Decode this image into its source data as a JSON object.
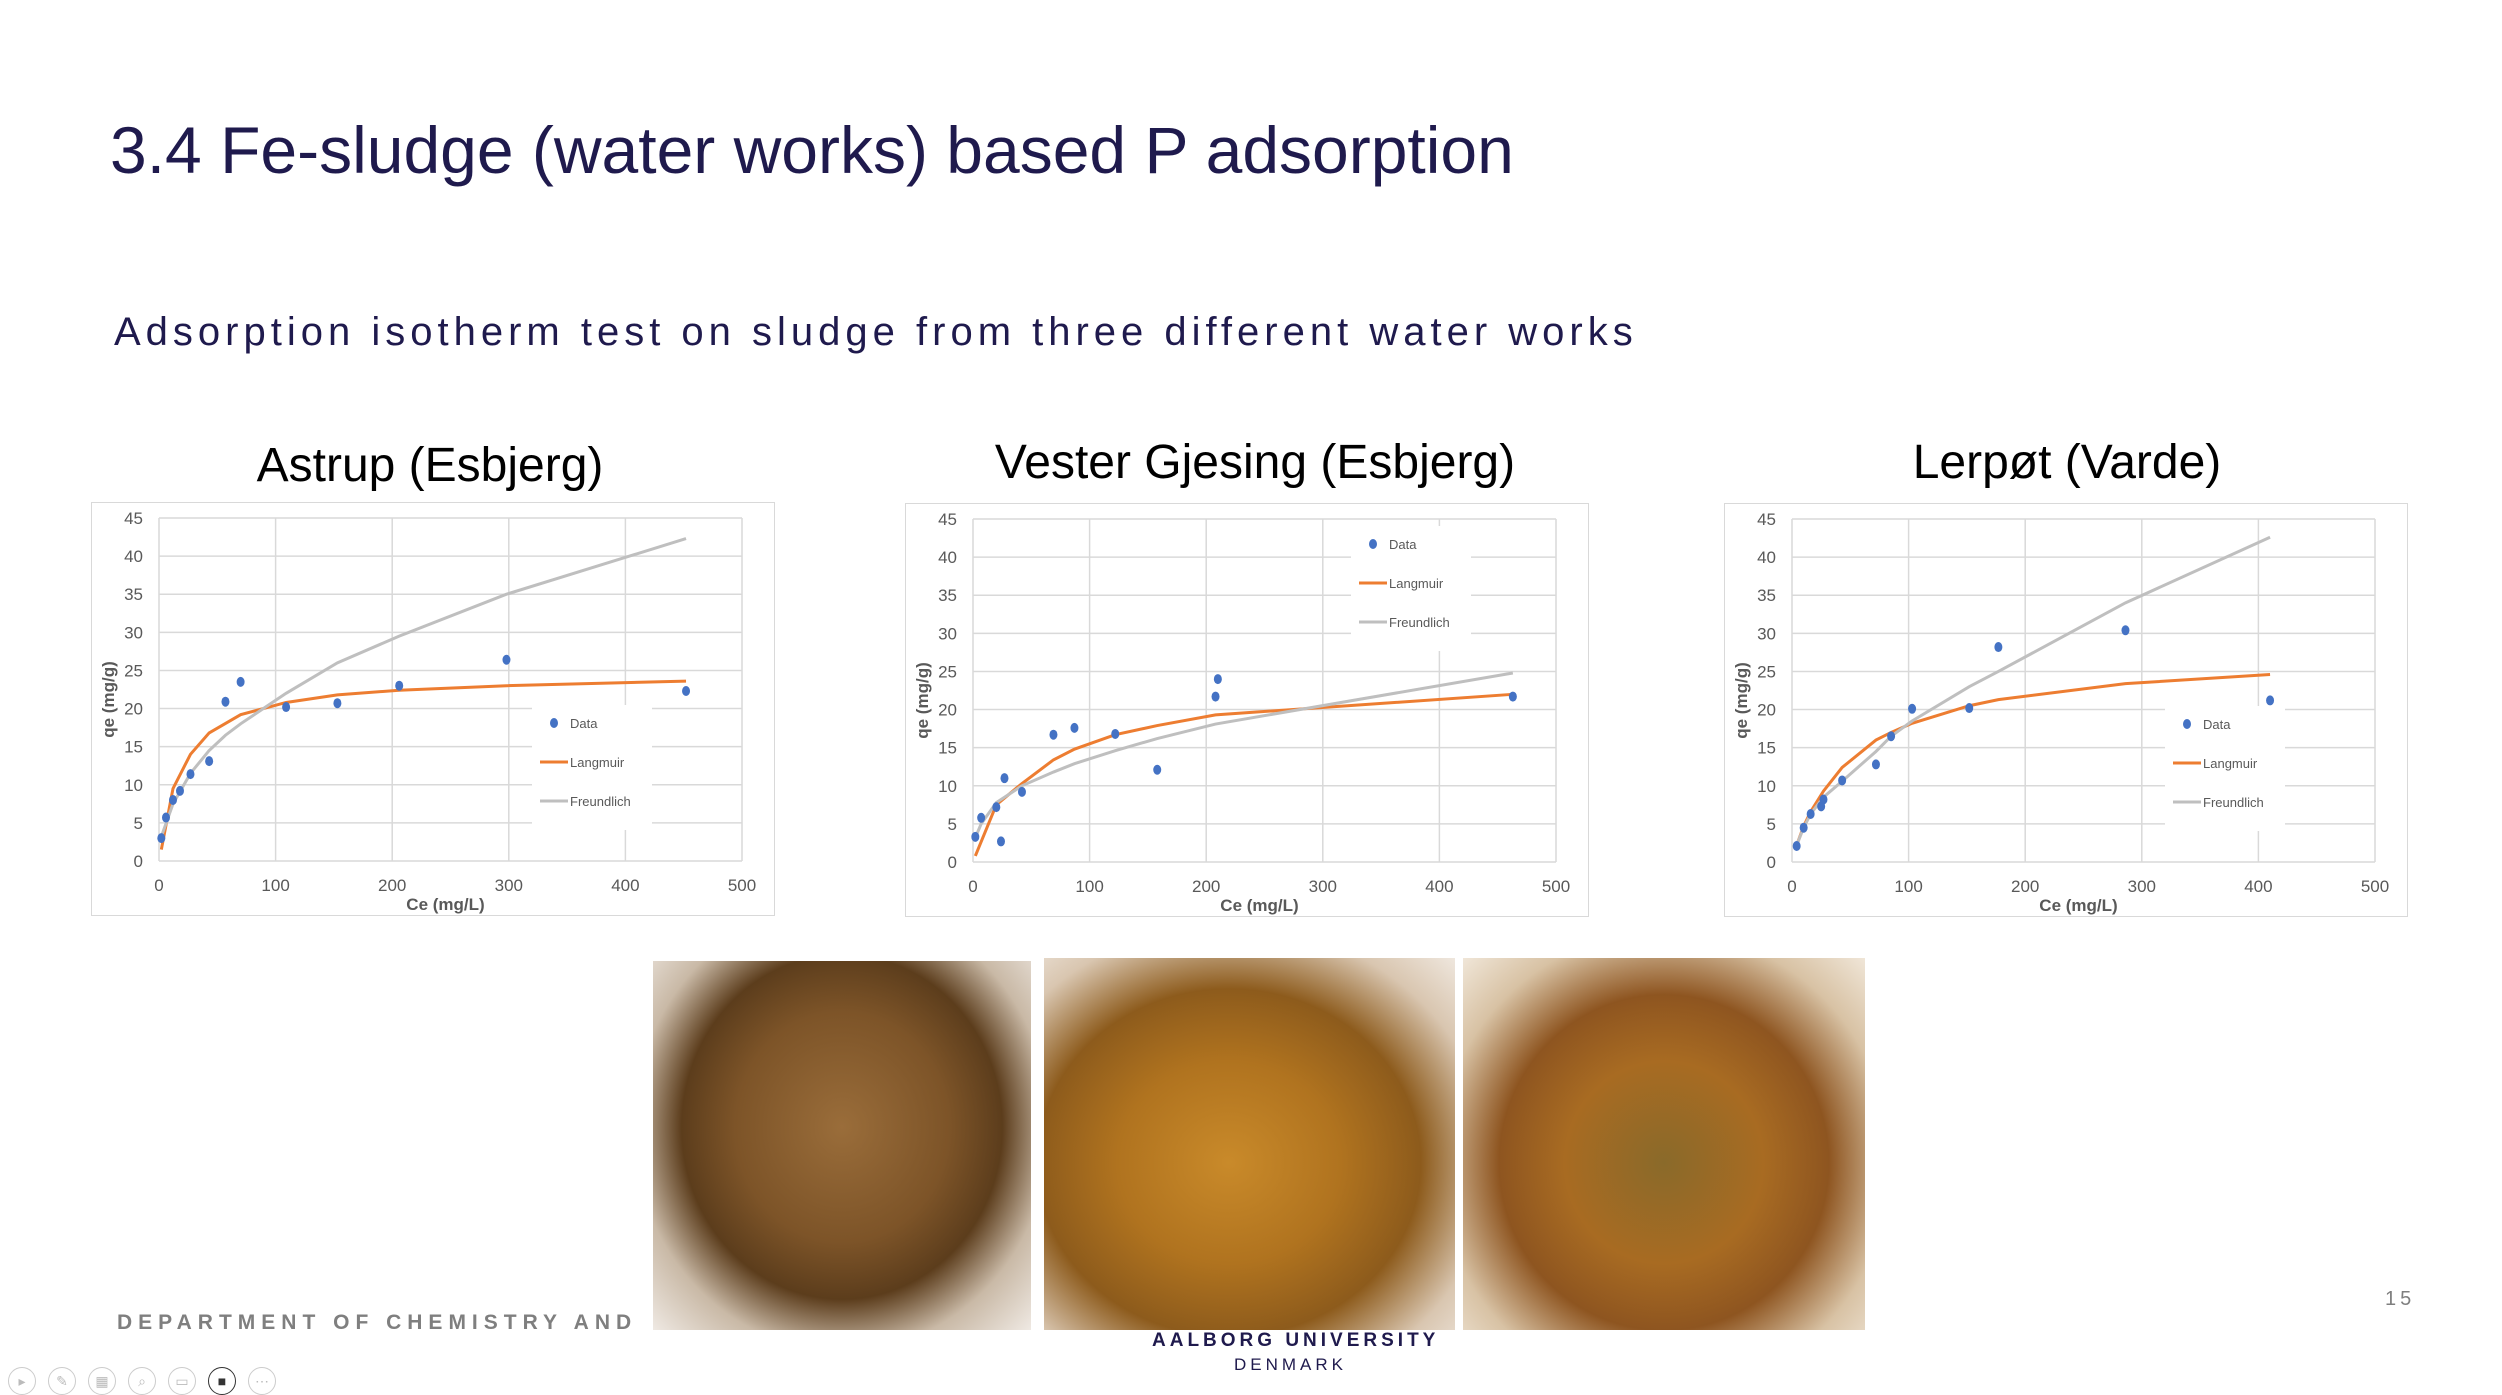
{
  "slide": {
    "title": "3.4 Fe-sludge (water works) based P adsorption",
    "subtitle": "Adsorption isotherm test on sludge from three different water works",
    "footer_department": "DEPARTMENT OF CHEMISTRY AND",
    "footer_university": "AALBORG UNIVERSITY",
    "footer_country": "DENMARK",
    "page_number": "15",
    "toolbar_icons": [
      "play-icon",
      "pen-icon",
      "grid-icon",
      "zoom-icon",
      "subtitles-icon",
      "camera-icon",
      "more-icon"
    ]
  },
  "colors": {
    "title": "#1f1a4d",
    "data": "#4472c4",
    "langmuir": "#ed7d31",
    "freundlich": "#bfbfbf",
    "grid": "#d9d9d9"
  },
  "chart_data": [
    {
      "type": "scatter",
      "title": "Astrup (Esbjerg)",
      "xlabel": "Ce (mg/L)",
      "ylabel": "qe (mg/g)",
      "xlim": [
        0,
        500
      ],
      "ylim": [
        0,
        45
      ],
      "xticks": [
        "0",
        "100",
        "200",
        "300",
        "400",
        "500"
      ],
      "yticks": [
        "0",
        "5",
        "10",
        "15",
        "20",
        "25",
        "30",
        "35",
        "40",
        "45"
      ],
      "grid": true,
      "legend_position": "bottom-right",
      "legend": [
        "Data",
        "Langmuir",
        "Freundlich"
      ],
      "series": [
        {
          "name": "Data",
          "kind": "points",
          "x": [
            2,
            6,
            12,
            18,
            27,
            43,
            57,
            70,
            109,
            153,
            206,
            298,
            452
          ],
          "y": [
            3,
            5.7,
            8,
            9.2,
            11.4,
            13.1,
            20.9,
            23.5,
            20.2,
            20.7,
            23,
            26.4,
            22.3
          ]
        },
        {
          "name": "Langmuir",
          "kind": "line",
          "x": [
            2,
            12,
            27,
            43,
            70,
            109,
            153,
            206,
            298,
            452
          ],
          "y": [
            1.5,
            9.5,
            14,
            16.8,
            19.2,
            20.8,
            21.8,
            22.4,
            23,
            23.6
          ]
        },
        {
          "name": "Freundlich",
          "kind": "line",
          "x": [
            2,
            12,
            27,
            43,
            57,
            70,
            109,
            153,
            206,
            298,
            452
          ],
          "y": [
            3.2,
            7.5,
            11.5,
            14.5,
            16.5,
            18,
            22,
            26,
            29.5,
            35,
            42.3
          ]
        }
      ]
    },
    {
      "type": "scatter",
      "title": "Vester Gjesing (Esbjerg)",
      "xlabel": "Ce (mg/L)",
      "ylabel": "qe (mg/g)",
      "xlim": [
        0,
        500
      ],
      "ylim": [
        0,
        45
      ],
      "xticks": [
        "0",
        "100",
        "200",
        "300",
        "400",
        "500"
      ],
      "yticks": [
        "0",
        "5",
        "10",
        "15",
        "20",
        "25",
        "30",
        "35",
        "40",
        "45"
      ],
      "grid": true,
      "legend_position": "top-right",
      "legend": [
        "Data",
        "Langmuir",
        "Freundlich"
      ],
      "series": [
        {
          "name": "Data",
          "kind": "points",
          "x": [
            2,
            7,
            20,
            24,
            27,
            42,
            69,
            87,
            122,
            158,
            208,
            210,
            463
          ],
          "y": [
            3.3,
            5.8,
            7.2,
            2.7,
            11,
            9.2,
            16.7,
            17.6,
            16.8,
            12.1,
            21.7,
            24,
            21.7
          ]
        },
        {
          "name": "Langmuir",
          "kind": "line",
          "x": [
            2,
            20,
            42,
            69,
            87,
            122,
            158,
            208,
            463
          ],
          "y": [
            0.8,
            7.5,
            10.3,
            13.4,
            14.8,
            16.7,
            17.9,
            19.3,
            22
          ]
        },
        {
          "name": "Freundlich",
          "kind": "line",
          "x": [
            2,
            7,
            20,
            42,
            69,
            87,
            122,
            158,
            208,
            463
          ],
          "y": [
            3.2,
            5,
            7.8,
            10,
            11.8,
            12.9,
            14.6,
            16.2,
            18.1,
            24.8
          ]
        }
      ]
    },
    {
      "type": "scatter",
      "title": "Lerpøt (Varde)",
      "xlabel": "Ce (mg/L)",
      "ylabel": "qe (mg/g)",
      "xlim": [
        0,
        500
      ],
      "ylim": [
        0,
        45
      ],
      "xticks": [
        "0",
        "100",
        "200",
        "300",
        "400",
        "500"
      ],
      "yticks": [
        "0",
        "5",
        "10",
        "15",
        "20",
        "25",
        "30",
        "35",
        "40",
        "45"
      ],
      "grid": true,
      "legend_position": "bottom-right",
      "legend": [
        "Data",
        "Langmuir",
        "Freundlich"
      ],
      "series": [
        {
          "name": "Data",
          "kind": "points",
          "x": [
            4,
            10,
            16,
            25,
            27,
            43,
            72,
            85,
            103,
            152,
            177,
            286,
            410
          ],
          "y": [
            2.1,
            4.5,
            6.3,
            7.3,
            8.2,
            10.7,
            12.8,
            16.5,
            20.1,
            20.2,
            28.2,
            30.4,
            21.2
          ]
        },
        {
          "name": "Langmuir",
          "kind": "line",
          "x": [
            4,
            10,
            16,
            27,
            43,
            72,
            85,
            103,
            152,
            177,
            286,
            410
          ],
          "y": [
            2.2,
            4.7,
            6.6,
            9.3,
            12.4,
            16,
            17,
            18.2,
            20.5,
            21.3,
            23.4,
            24.6
          ]
        },
        {
          "name": "Freundlich",
          "kind": "line",
          "x": [
            4,
            10,
            16,
            27,
            43,
            72,
            85,
            103,
            152,
            177,
            286,
            410
          ],
          "y": [
            2.2,
            4.5,
            6.3,
            8.5,
            10.6,
            14.5,
            16.5,
            18.5,
            23,
            25,
            34,
            42.6
          ]
        }
      ]
    }
  ]
}
